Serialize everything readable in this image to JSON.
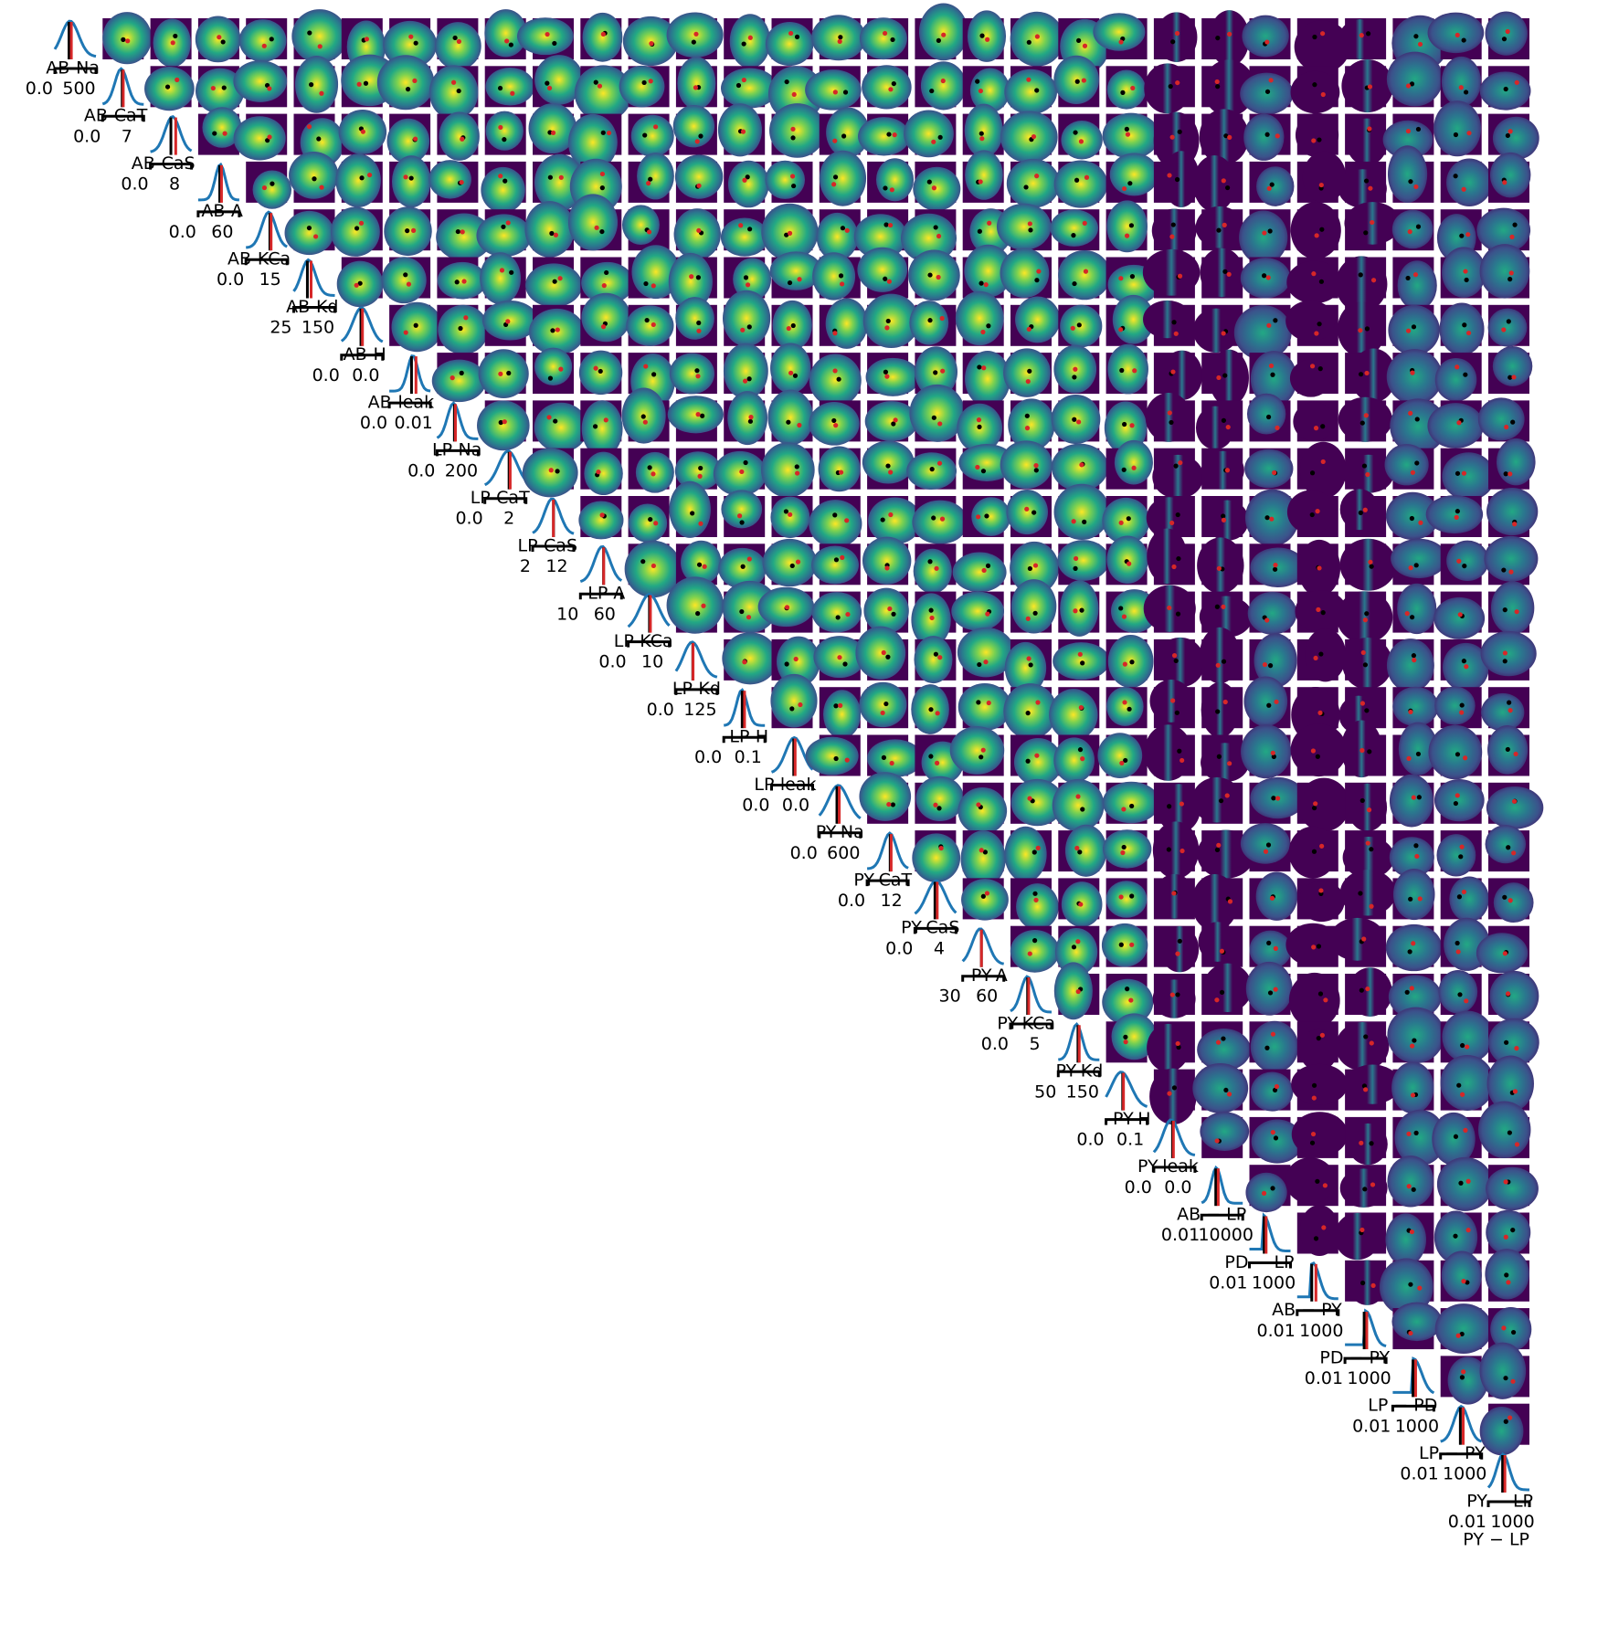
{
  "chart_data": {
    "type": "pairplot",
    "title": "",
    "parameters": [
      {
        "name": "",
        "lim_low": "0.0",
        "lim_high": "500"
      },
      {
        "name": "AB-Na",
        "lim_low": "0.0",
        "lim_high": "7"
      },
      {
        "name": "AB-CaT",
        "lim_low": "0.0",
        "lim_high": "8"
      },
      {
        "name": "AB-CaS",
        "lim_low": "0.0",
        "lim_high": "60"
      },
      {
        "name": "AB-A",
        "lim_low": "0.0",
        "lim_high": "15"
      },
      {
        "name": "AB-KCa",
        "lim_low": "25",
        "lim_high": "150"
      },
      {
        "name": "AB-Kd",
        "lim_low": "0.0",
        "lim_high": "0.0"
      },
      {
        "name": "AB-H",
        "lim_low": "0.0",
        "lim_high": "0.01"
      },
      {
        "name": "AB-leak",
        "lim_low": "0.0",
        "lim_high": "200"
      },
      {
        "name": "LP-Na",
        "lim_low": "0.0",
        "lim_high": "2"
      },
      {
        "name": "LP-CaT",
        "lim_low": "2",
        "lim_high": "12"
      },
      {
        "name": "LP-CaS",
        "lim_low": "10",
        "lim_high": "60"
      },
      {
        "name": "LP-A",
        "lim_low": "0.0",
        "lim_high": "10"
      },
      {
        "name": "LP-KCa",
        "lim_low": "0.0",
        "lim_high": "125"
      },
      {
        "name": "LP-Kd",
        "lim_low": "0.0",
        "lim_high": "0.1"
      },
      {
        "name": "LP-H",
        "lim_low": "0.0",
        "lim_high": "0.0"
      },
      {
        "name": "LP-leak",
        "lim_low": "0.0",
        "lim_high": "600"
      },
      {
        "name": "PY-Na",
        "lim_low": "0.0",
        "lim_high": "12"
      },
      {
        "name": "PY-CaT",
        "lim_low": "0.0",
        "lim_high": "4"
      },
      {
        "name": "PY-CaS",
        "lim_low": "30",
        "lim_high": "60"
      },
      {
        "name": "PY-A",
        "lim_low": "0.0",
        "lim_high": "5"
      },
      {
        "name": "PY-KCa",
        "lim_low": "50",
        "lim_high": "150"
      },
      {
        "name": "PY-Kd",
        "lim_low": "0.0",
        "lim_high": "0.1"
      },
      {
        "name": "PY-H",
        "lim_low": "0.0",
        "lim_high": "0.0"
      },
      {
        "name": "PY-leak",
        "lim_low": "0.01",
        "lim_high": "10000"
      },
      {
        "name": "AB − LP",
        "lim_low": "0.01",
        "lim_high": "1000"
      },
      {
        "name": "PD − LP",
        "lim_low": "0.01",
        "lim_high": "1000"
      },
      {
        "name": "AB − PY",
        "lim_low": "0.01",
        "lim_high": "1000"
      },
      {
        "name": "PD − PY",
        "lim_low": "0.01",
        "lim_high": "1000"
      },
      {
        "name": "LP − PD",
        "lim_low": "0.01",
        "lim_high": "1000"
      },
      {
        "name": "LP − PY",
        "lim_low": "0.01",
        "lim_high": "1000"
      },
      {
        "name": "PY − LP",
        "lim_low": "",
        "lim_high": ""
      }
    ],
    "marker_colors": {
      "true_value": "#d62728",
      "estimate": "#000000",
      "density_line": "#1f77b4"
    },
    "colormap": "viridis",
    "layout": "upper-triangle: diagonal 1D marginals, off-diagonal 2D density images",
    "grid": false
  }
}
